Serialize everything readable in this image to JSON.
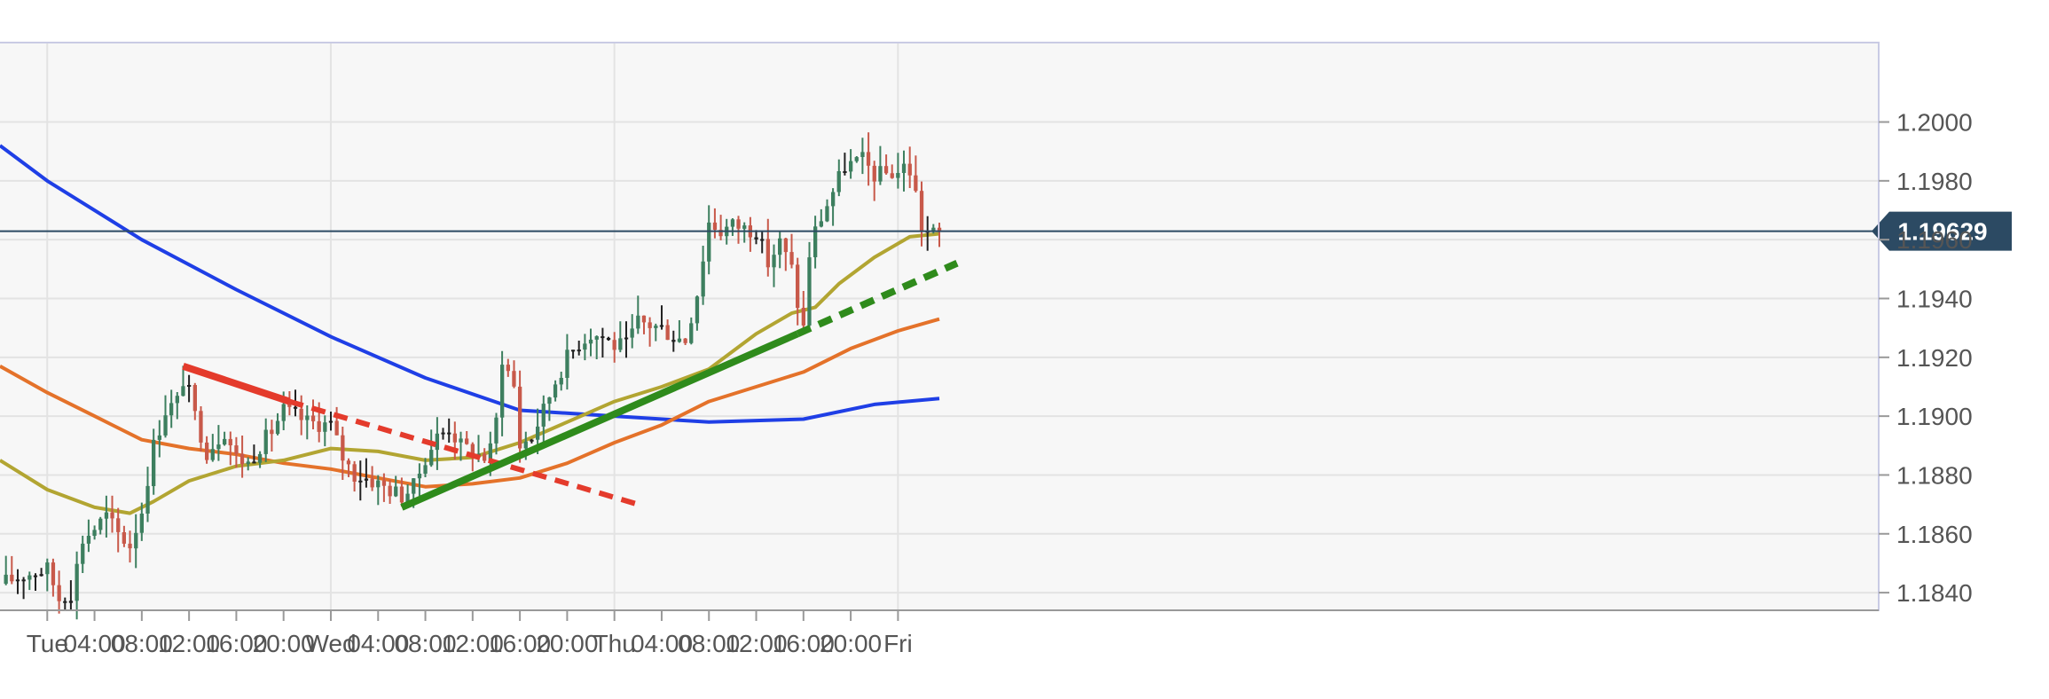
{
  "chart_data": {
    "type": "candlestick",
    "title": "",
    "xlabel": "",
    "ylabel": "",
    "ylim": [
      1.1834,
      1.2027
    ],
    "xlim": [
      -4,
      155
    ],
    "grid": true,
    "time_unit": "hour",
    "x_ticks": [
      {
        "x": 0,
        "label": "Tue"
      },
      {
        "x": 4,
        "label": "04:00"
      },
      {
        "x": 8,
        "label": "08:00"
      },
      {
        "x": 12,
        "label": "12:00"
      },
      {
        "x": 16,
        "label": "16:00"
      },
      {
        "x": 20,
        "label": "20:00"
      },
      {
        "x": 24,
        "label": "Wed"
      },
      {
        "x": 28,
        "label": "04:00"
      },
      {
        "x": 32,
        "label": "08:00"
      },
      {
        "x": 36,
        "label": "12:00"
      },
      {
        "x": 40,
        "label": "16:00"
      },
      {
        "x": 44,
        "label": "20:00"
      },
      {
        "x": 48,
        "label": "Thu"
      },
      {
        "x": 52,
        "label": "04:00"
      },
      {
        "x": 56,
        "label": "08:00"
      },
      {
        "x": 60,
        "label": "12:00"
      },
      {
        "x": 64,
        "label": "16:00"
      },
      {
        "x": 68,
        "label": "20:00"
      },
      {
        "x": 72,
        "label": "Fri"
      }
    ],
    "y_ticks": [
      "1.1840",
      "1.1860",
      "1.1880",
      "1.1900",
      "1.1920",
      "1.1940",
      "1.1960",
      "1.1980",
      "1.2000"
    ],
    "current_price": {
      "value": 1.19629,
      "label": "1.19629",
      "color": "#2c4a63"
    },
    "candle_colors": {
      "up": "#3d7f5f",
      "down": "#c8594a",
      "doji": "#222222"
    },
    "ohlc_anchors": [
      [
        -4,
        1.1843
      ],
      [
        -2,
        1.1846
      ],
      [
        0,
        1.1848
      ],
      [
        1,
        1.1838
      ],
      [
        2,
        1.184
      ],
      [
        3,
        1.1858
      ],
      [
        4,
        1.1862
      ],
      [
        5,
        1.1866
      ],
      [
        6,
        1.186
      ],
      [
        7,
        1.1856
      ],
      [
        8,
        1.1868
      ],
      [
        9,
        1.189
      ],
      [
        10,
        1.1902
      ],
      [
        11,
        1.1905
      ],
      [
        11.6,
        1.1914
      ],
      [
        12.5,
        1.19
      ],
      [
        13.5,
        1.1888
      ],
      [
        15,
        1.1895
      ],
      [
        16,
        1.1886
      ],
      [
        17,
        1.1884
      ],
      [
        18,
        1.189
      ],
      [
        19,
        1.1895
      ],
      [
        20,
        1.1902
      ],
      [
        22,
        1.1898
      ],
      [
        24,
        1.1897
      ],
      [
        25,
        1.1886
      ],
      [
        26,
        1.188
      ],
      [
        27,
        1.1879
      ],
      [
        28.5,
        1.1876
      ],
      [
        30,
        1.1873
      ],
      [
        31,
        1.1876
      ],
      [
        32,
        1.1886
      ],
      [
        33,
        1.1893
      ],
      [
        34,
        1.1896
      ],
      [
        35,
        1.189
      ],
      [
        36,
        1.1888
      ],
      [
        37,
        1.1886
      ],
      [
        37.8,
        1.189
      ],
      [
        38.5,
        1.192
      ],
      [
        39.5,
        1.191
      ],
      [
        40,
        1.189
      ],
      [
        41,
        1.1893
      ],
      [
        42,
        1.1902
      ],
      [
        43,
        1.1912
      ],
      [
        44,
        1.192
      ],
      [
        45,
        1.1925
      ],
      [
        46,
        1.1928
      ],
      [
        47,
        1.1927
      ],
      [
        48,
        1.1924
      ],
      [
        49,
        1.1924
      ],
      [
        50,
        1.1932
      ],
      [
        51,
        1.1931
      ],
      [
        52,
        1.193
      ],
      [
        53,
        1.1927
      ],
      [
        54,
        1.1926
      ],
      [
        55,
        1.1942
      ],
      [
        56,
        1.1966
      ],
      [
        57,
        1.1963
      ],
      [
        58,
        1.1965
      ],
      [
        59,
        1.1964
      ],
      [
        60,
        1.1963
      ],
      [
        61,
        1.1952
      ],
      [
        62,
        1.1959
      ],
      [
        63,
        1.195
      ],
      [
        63.6,
        1.1936
      ],
      [
        64,
        1.193
      ],
      [
        64.5,
        1.1955
      ],
      [
        65,
        1.1963
      ],
      [
        66,
        1.1972
      ],
      [
        66.8,
        1.1979
      ],
      [
        67.5,
        1.1985
      ],
      [
        69,
        1.1987
      ],
      [
        70,
        1.1982
      ],
      [
        72,
        1.1983
      ],
      [
        72.8,
        1.1986
      ],
      [
        73.4,
        1.1978
      ],
      [
        74,
        1.1964
      ],
      [
        74.8,
        1.1962
      ],
      [
        75.5,
        1.1962
      ]
    ],
    "moving_averages": [
      {
        "color": "#1f3fe6",
        "points": [
          [
            -4,
            1.1992
          ],
          [
            0,
            1.198
          ],
          [
            8,
            1.196
          ],
          [
            16,
            1.1943
          ],
          [
            24,
            1.1927
          ],
          [
            32,
            1.1913
          ],
          [
            40,
            1.1902
          ],
          [
            48,
            1.19
          ],
          [
            56,
            1.1898
          ],
          [
            64,
            1.1899
          ],
          [
            70,
            1.1904
          ],
          [
            75.5,
            1.1906
          ]
        ]
      },
      {
        "color": "#e4722a",
        "points": [
          [
            -4,
            1.1917
          ],
          [
            0,
            1.1908
          ],
          [
            4,
            1.19
          ],
          [
            8,
            1.1892
          ],
          [
            12,
            1.1889
          ],
          [
            16,
            1.1887
          ],
          [
            20,
            1.1884
          ],
          [
            24,
            1.1882
          ],
          [
            28,
            1.1879
          ],
          [
            32,
            1.1876
          ],
          [
            36,
            1.1877
          ],
          [
            40,
            1.1879
          ],
          [
            44,
            1.1884
          ],
          [
            48,
            1.1891
          ],
          [
            52,
            1.1897
          ],
          [
            56,
            1.1905
          ],
          [
            60,
            1.191
          ],
          [
            64,
            1.1915
          ],
          [
            68,
            1.1923
          ],
          [
            72,
            1.1929
          ],
          [
            75.5,
            1.1933
          ]
        ]
      },
      {
        "color": "#b2a532",
        "points": [
          [
            -4,
            1.1885
          ],
          [
            0,
            1.1875
          ],
          [
            4,
            1.1869
          ],
          [
            7,
            1.1867
          ],
          [
            9,
            1.1871
          ],
          [
            12,
            1.1878
          ],
          [
            16,
            1.1883
          ],
          [
            20,
            1.1885
          ],
          [
            24,
            1.1889
          ],
          [
            28,
            1.1888
          ],
          [
            32,
            1.1885
          ],
          [
            36,
            1.1886
          ],
          [
            40,
            1.1891
          ],
          [
            44,
            1.1898
          ],
          [
            48,
            1.1905
          ],
          [
            52,
            1.191
          ],
          [
            56,
            1.1916
          ],
          [
            60,
            1.1928
          ],
          [
            63,
            1.1935
          ],
          [
            65,
            1.1937
          ],
          [
            67,
            1.1945
          ],
          [
            70,
            1.1954
          ],
          [
            73,
            1.1961
          ],
          [
            75.5,
            1.1962
          ]
        ]
      }
    ],
    "trendlines": [
      {
        "color": "#e43b2c",
        "width": 8,
        "dash": false,
        "points": [
          [
            11.5,
            1.1917
          ],
          [
            20.5,
            1.1905
          ]
        ]
      },
      {
        "color": "#e43b2c",
        "width": 6,
        "dash": true,
        "points": [
          [
            20.5,
            1.1905
          ],
          [
            50,
            1.187
          ]
        ]
      },
      {
        "color": "#2f8b1c",
        "width": 8,
        "dash": false,
        "points": [
          [
            30,
            1.1869
          ],
          [
            63.5,
            1.1928
          ]
        ]
      },
      {
        "color": "#2f8b1c",
        "width": 8,
        "dash": true,
        "points": [
          [
            63.5,
            1.1928
          ],
          [
            77,
            1.1952
          ]
        ]
      }
    ],
    "colors": {
      "plot_background": "#f7f7f7",
      "page_background": "#ffffff",
      "plot_border": "#c9cbe4",
      "grid": "#e3e3e3",
      "axis_text": "#555555"
    }
  }
}
